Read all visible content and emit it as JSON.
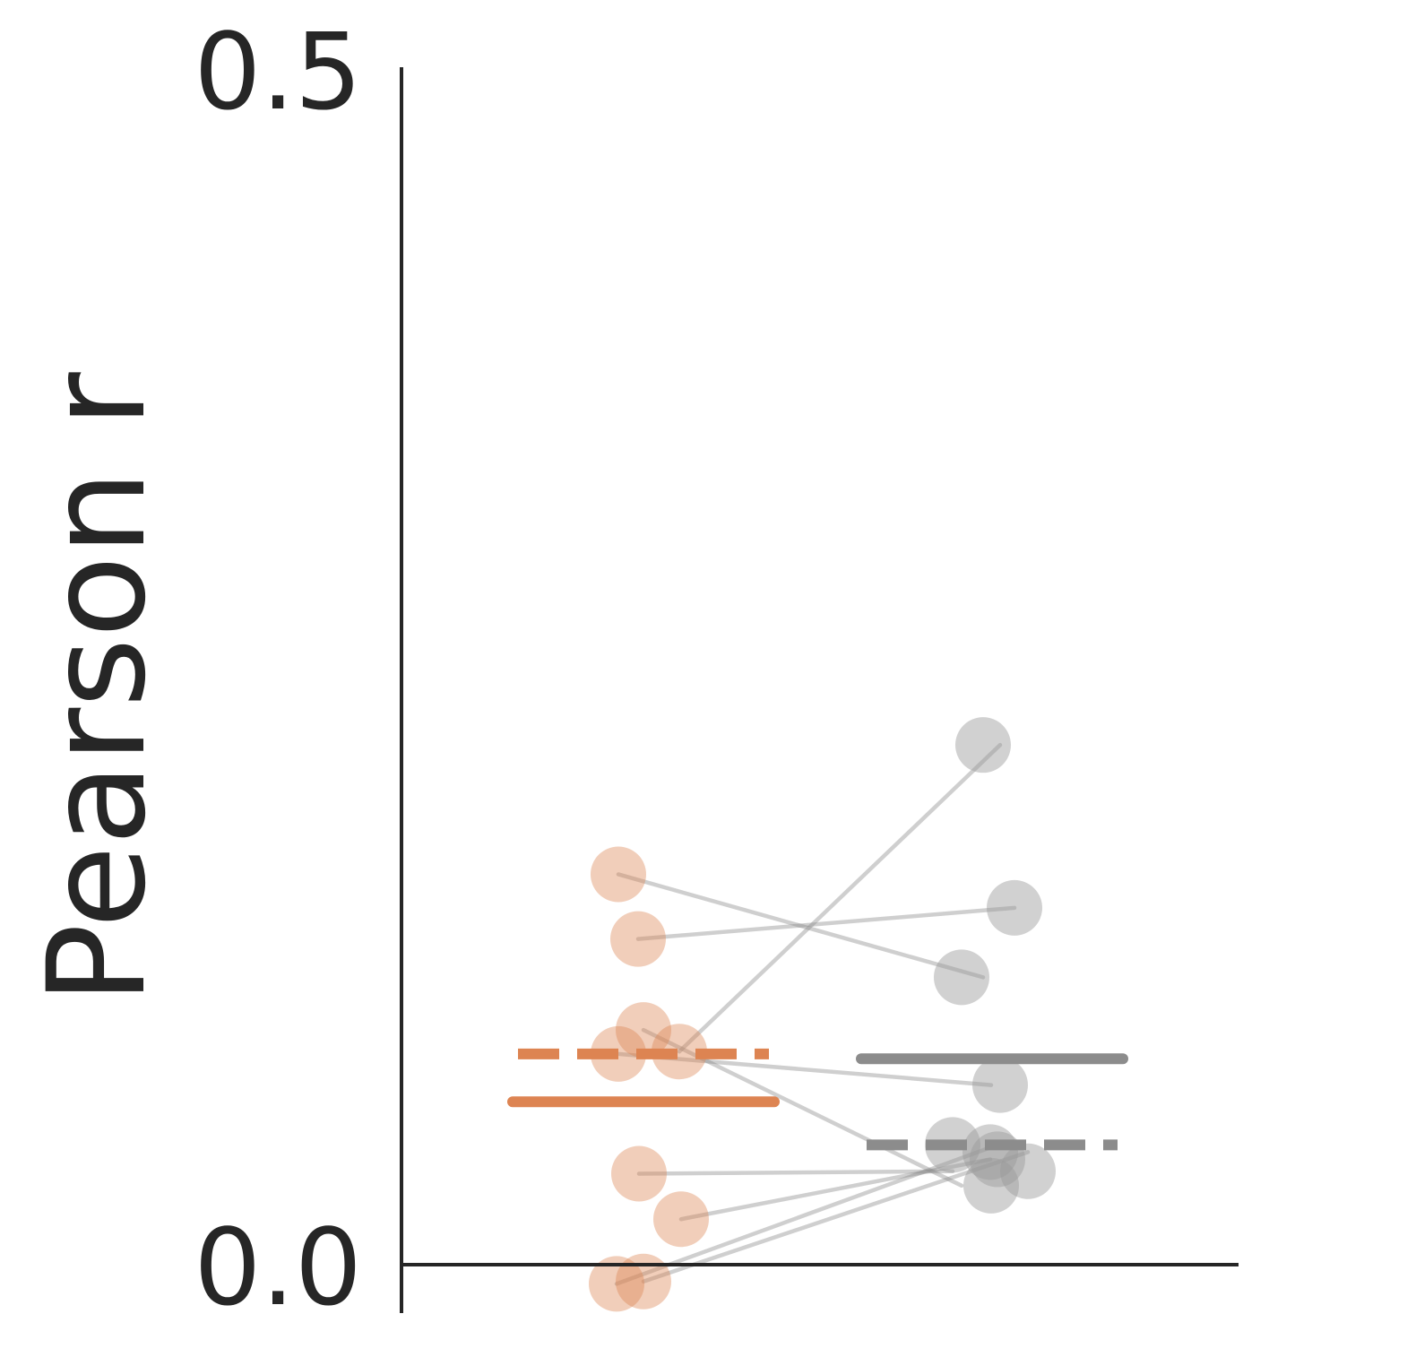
{
  "chart_data": {
    "type": "scatter",
    "ylabel": "Pearson r",
    "ylim": [
      0.0,
      0.5
    ],
    "yticks": [
      "0.0",
      "0.5"
    ],
    "grid": false,
    "groups": [
      {
        "color": "#dd8452",
        "mean": 0.068,
        "median": 0.088,
        "points": [
          0.163,
          0.136,
          0.098,
          0.089,
          0.088,
          0.038,
          0.019,
          -0.007,
          -0.008
        ]
      },
      {
        "color": "#999999",
        "mean": 0.086,
        "median": 0.05,
        "points": [
          0.217,
          0.149,
          0.12,
          0.075,
          0.033,
          0.05,
          0.047,
          0.039,
          0.044
        ]
      }
    ],
    "pairs": [
      [
        0.163,
        0.12
      ],
      [
        0.136,
        0.149
      ],
      [
        0.098,
        0.033
      ],
      [
        0.089,
        0.217
      ],
      [
        0.088,
        0.075
      ],
      [
        0.038,
        0.039
      ],
      [
        0.019,
        0.044
      ],
      [
        -0.007,
        0.047
      ],
      [
        -0.008,
        0.05
      ]
    ]
  }
}
